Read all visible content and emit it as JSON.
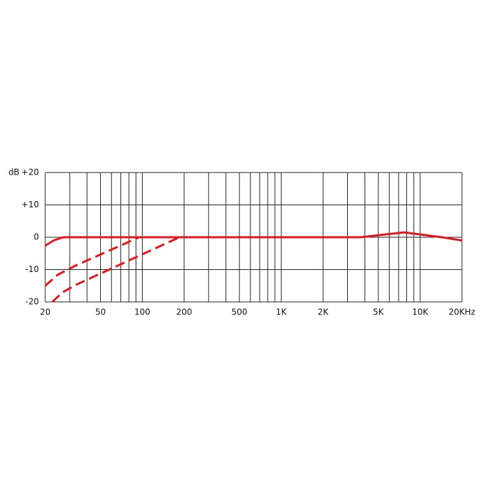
{
  "chart_data": {
    "type": "line",
    "y_label": "dB",
    "log_x": true,
    "grid": true,
    "xlim": [
      20,
      20000
    ],
    "ylim": [
      -20,
      20
    ],
    "xticks": [
      20,
      50,
      100,
      200,
      500,
      {
        "value": 1000,
        "label": "1K"
      },
      {
        "value": 2000,
        "label": "2K"
      },
      {
        "value": 5000,
        "label": "5K"
      },
      {
        "value": 10000,
        "label": "10K"
      },
      {
        "value": 20000,
        "label": "20KHz"
      }
    ],
    "xgrid": [
      20,
      30,
      40,
      50,
      60,
      70,
      80,
      90,
      100,
      200,
      300,
      400,
      500,
      600,
      700,
      800,
      900,
      1000,
      2000,
      3000,
      4000,
      5000,
      6000,
      7000,
      8000,
      9000,
      10000,
      20000
    ],
    "yticks": [
      {
        "value": 20,
        "label": "+20"
      },
      {
        "value": 10,
        "label": "+10"
      },
      0,
      -10,
      -20
    ],
    "series": [
      {
        "color": "#e8141b",
        "style": "solid",
        "x": [
          20,
          23,
          27,
          3730,
          7670,
          14300,
          20000
        ],
        "values": [
          -2.6,
          -1,
          0,
          0,
          1.5,
          0,
          -1
        ]
      },
      {
        "color": "#e8141b",
        "style": "dashed",
        "x": [
          20,
          24.6,
          33,
          95
        ],
        "values": [
          -15,
          -11.6,
          -8.8,
          0
        ]
      },
      {
        "color": "#e8141b",
        "style": "dashed",
        "x": [
          22.5,
          26.7,
          33,
          185
        ],
        "values": [
          -20,
          -17,
          -14.8,
          0
        ]
      }
    ]
  }
}
